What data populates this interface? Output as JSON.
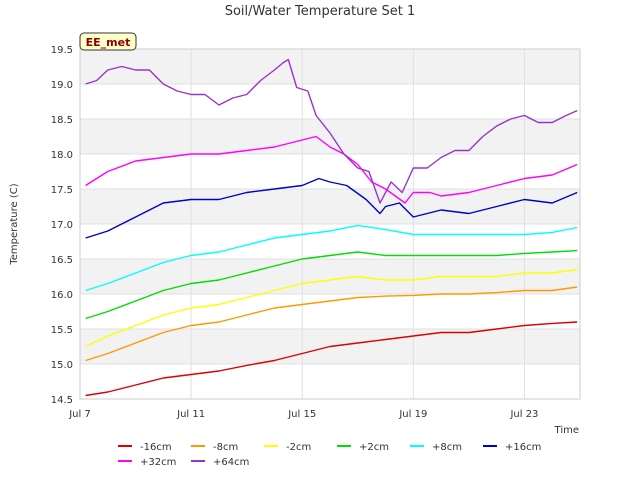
{
  "chart_data": {
    "type": "line",
    "title": "Soil/Water Temperature Set 1",
    "xlabel": "Time",
    "ylabel": "Temperature (C)",
    "site_label": "EE_met",
    "xlim": [
      7,
      25
    ],
    "ylim": [
      14.5,
      19.5
    ],
    "x_ticks": [
      {
        "value": 7,
        "label": "Jul 7"
      },
      {
        "value": 11,
        "label": "Jul 11"
      },
      {
        "value": 15,
        "label": "Jul 15"
      },
      {
        "value": 19,
        "label": "Jul 19"
      },
      {
        "value": 23,
        "label": "Jul 23"
      }
    ],
    "y_ticks": [
      "14.5",
      "15.0",
      "15.5",
      "16.0",
      "16.5",
      "17.0",
      "17.5",
      "18.0",
      "18.5",
      "19.0",
      "19.5"
    ],
    "grid": true,
    "legend_position": "bottom",
    "series": [
      {
        "name": "-16cm",
        "color": "#dd0000",
        "x": [
          7.2,
          8,
          9,
          10,
          11,
          12,
          13,
          14,
          15,
          16,
          17,
          18,
          19,
          20,
          21,
          22,
          23,
          24,
          24.9
        ],
        "y": [
          14.55,
          14.6,
          14.7,
          14.8,
          14.85,
          14.9,
          14.98,
          15.05,
          15.15,
          15.25,
          15.3,
          15.35,
          15.4,
          15.45,
          15.45,
          15.5,
          15.55,
          15.58,
          15.6
        ]
      },
      {
        "name": "-8cm",
        "color": "#ff9900",
        "x": [
          7.2,
          8,
          9,
          10,
          11,
          12,
          13,
          14,
          15,
          16,
          17,
          18,
          19,
          20,
          21,
          22,
          23,
          24,
          24.9
        ],
        "y": [
          15.05,
          15.15,
          15.3,
          15.45,
          15.55,
          15.6,
          15.7,
          15.8,
          15.85,
          15.9,
          15.95,
          15.97,
          15.98,
          16.0,
          16.0,
          16.02,
          16.05,
          16.05,
          16.1
        ]
      },
      {
        "name": "-2cm",
        "color": "#ffff00",
        "x": [
          7.2,
          8,
          9,
          10,
          11,
          12,
          13,
          14,
          15,
          16,
          17,
          18,
          19,
          20,
          21,
          22,
          23,
          24,
          24.9
        ],
        "y": [
          15.25,
          15.4,
          15.55,
          15.7,
          15.8,
          15.85,
          15.95,
          16.05,
          16.15,
          16.2,
          16.25,
          16.2,
          16.2,
          16.25,
          16.25,
          16.25,
          16.3,
          16.3,
          16.35
        ]
      },
      {
        "name": "+2cm",
        "color": "#00dd00",
        "x": [
          7.2,
          8,
          9,
          10,
          11,
          12,
          13,
          14,
          15,
          16,
          17,
          18,
          19,
          20,
          21,
          22,
          23,
          24,
          24.9
        ],
        "y": [
          15.65,
          15.75,
          15.9,
          16.05,
          16.15,
          16.2,
          16.3,
          16.4,
          16.5,
          16.55,
          16.6,
          16.55,
          16.55,
          16.55,
          16.55,
          16.55,
          16.58,
          16.6,
          16.62
        ]
      },
      {
        "name": "+8cm",
        "color": "#00ffff",
        "x": [
          7.2,
          8,
          9,
          10,
          11,
          12,
          13,
          14,
          15,
          16,
          17,
          18,
          19,
          20,
          21,
          22,
          23,
          24,
          24.9
        ],
        "y": [
          16.05,
          16.15,
          16.3,
          16.45,
          16.55,
          16.6,
          16.7,
          16.8,
          16.85,
          16.9,
          16.98,
          16.92,
          16.85,
          16.85,
          16.85,
          16.85,
          16.85,
          16.88,
          16.95
        ]
      },
      {
        "name": "+16cm",
        "color": "#0000cc",
        "x": [
          7.2,
          8,
          9,
          10,
          11,
          12,
          13,
          14,
          15,
          15.6,
          16,
          16.6,
          17.3,
          17.8,
          18,
          18.5,
          19,
          20,
          21,
          22,
          23,
          24,
          24.9
        ],
        "y": [
          16.8,
          16.9,
          17.1,
          17.3,
          17.35,
          17.35,
          17.45,
          17.5,
          17.55,
          17.65,
          17.6,
          17.55,
          17.35,
          17.15,
          17.25,
          17.3,
          17.1,
          17.2,
          17.15,
          17.25,
          17.35,
          17.3,
          17.45
        ]
      },
      {
        "name": "+32cm",
        "color": "#ff00ff",
        "x": [
          7.2,
          8,
          9,
          10,
          11,
          12,
          13,
          14,
          15,
          15.5,
          16,
          16.5,
          17,
          17.5,
          18,
          18.7,
          19,
          19.6,
          20,
          21,
          22,
          23,
          24,
          24.9
        ],
        "y": [
          17.55,
          17.75,
          17.9,
          17.95,
          18.0,
          18.0,
          18.05,
          18.1,
          18.2,
          18.25,
          18.1,
          18.0,
          17.85,
          17.6,
          17.5,
          17.3,
          17.45,
          17.45,
          17.4,
          17.45,
          17.55,
          17.65,
          17.7,
          17.85
        ]
      },
      {
        "name": "+64cm",
        "color": "#9933cc",
        "x": [
          7.2,
          7.6,
          8,
          8.5,
          9,
          9.5,
          10,
          10.5,
          11,
          11.5,
          12,
          12.5,
          13,
          13.5,
          14,
          14.3,
          14.5,
          14.8,
          15.2,
          15.5,
          16,
          16.5,
          17,
          17.4,
          17.8,
          18.2,
          18.6,
          19,
          19.5,
          20,
          20.5,
          21,
          21.5,
          22,
          22.5,
          23,
          23.5,
          24,
          24.5,
          24.9
        ],
        "y": [
          19.0,
          19.05,
          19.2,
          19.25,
          19.2,
          19.2,
          19.0,
          18.9,
          18.85,
          18.85,
          18.7,
          18.8,
          18.85,
          19.05,
          19.2,
          19.3,
          19.35,
          18.95,
          18.9,
          18.55,
          18.3,
          18.0,
          17.8,
          17.75,
          17.3,
          17.6,
          17.45,
          17.8,
          17.8,
          17.95,
          18.05,
          18.05,
          18.25,
          18.4,
          18.5,
          18.55,
          18.45,
          18.45,
          18.55,
          18.62
        ]
      }
    ]
  }
}
